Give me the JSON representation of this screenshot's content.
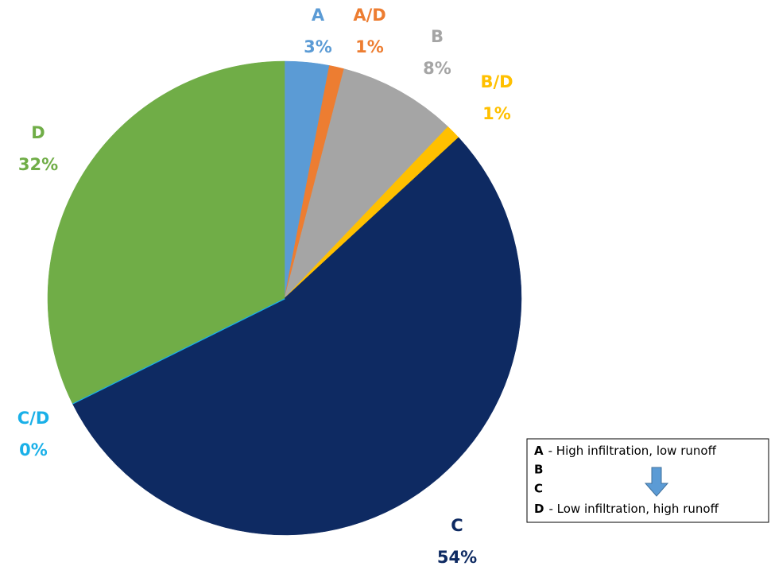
{
  "chart_data": {
    "type": "pie",
    "categories": [
      "A",
      "A/D",
      "B",
      "B/D",
      "C",
      "C/D",
      "D"
    ],
    "values": [
      3,
      1,
      8,
      1,
      54,
      0,
      32
    ],
    "value_labels": [
      "3%",
      "1%",
      "8%",
      "1%",
      "54%",
      "0%",
      "32%"
    ],
    "colors": [
      "#5b9bd5",
      "#ed7d31",
      "#a5a5a5",
      "#ffc000",
      "#0e2a62",
      "#1ab0e8",
      "#70ad47"
    ]
  },
  "legend_box": [
    {
      "key": "A",
      "text": "- High infiltration, low runoff"
    },
    {
      "key": "B"
    },
    {
      "key": "C"
    },
    {
      "key": "D",
      "text": "- Low infiltration, high runoff"
    }
  ]
}
